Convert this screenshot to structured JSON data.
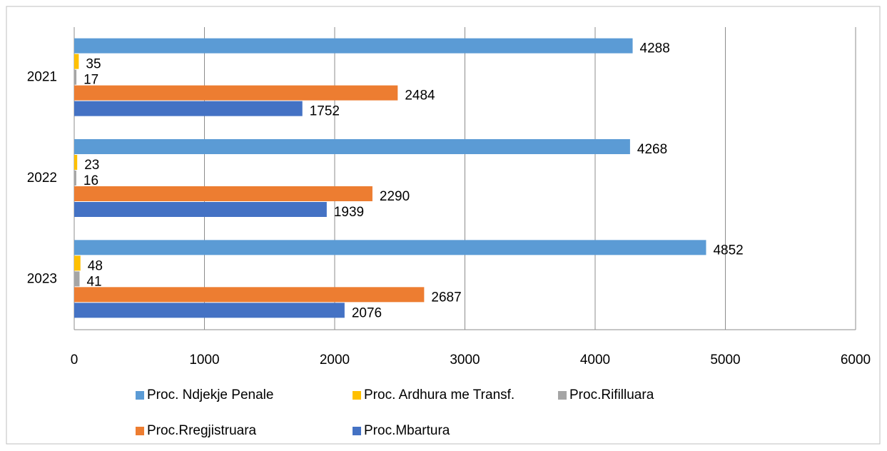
{
  "chart_data": {
    "type": "bar",
    "orientation": "horizontal",
    "categories": [
      "2021",
      "2022",
      "2023"
    ],
    "series": [
      {
        "name": "Proc. Ndjekje Penale",
        "color": "#5b9bd5",
        "values": [
          4288,
          4268,
          4852
        ]
      },
      {
        "name": "Proc. Ardhura me Transf.",
        "color": "#ffc000",
        "values": [
          35,
          23,
          48
        ]
      },
      {
        "name": "Proc.Rifilluara",
        "color": "#a5a5a5",
        "values": [
          17,
          16,
          41
        ]
      },
      {
        "name": "Proc.Rregjistruara",
        "color": "#ed7d31",
        "values": [
          2484,
          2290,
          2687
        ]
      },
      {
        "name": "Proc.Mbartura",
        "color": "#4472c4",
        "values": [
          1752,
          1939,
          2076
        ]
      }
    ],
    "xlim": [
      0,
      6000
    ],
    "xticks": [
      0,
      1000,
      2000,
      3000,
      4000,
      5000,
      6000
    ],
    "grid": true,
    "legend": "bottom"
  }
}
